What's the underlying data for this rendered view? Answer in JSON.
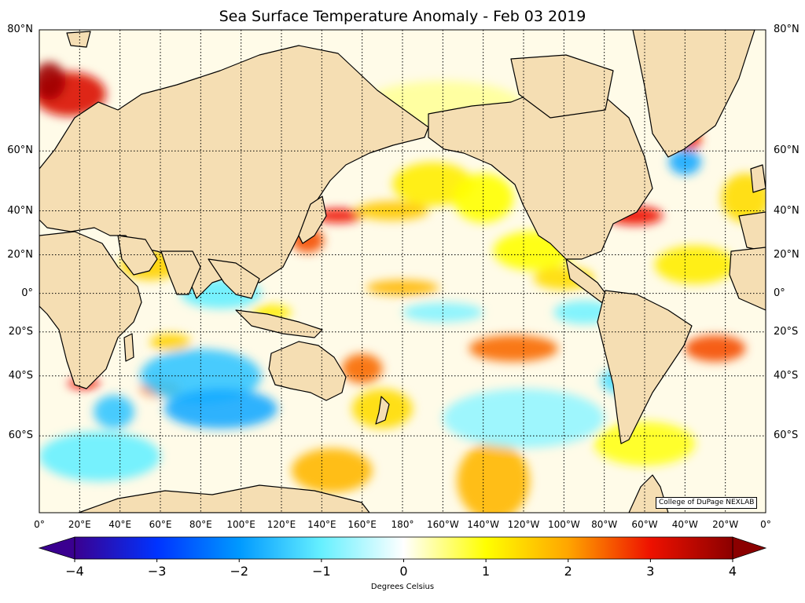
{
  "title": "Sea Surface Temperature Anomaly - Feb 03 2019",
  "credit": "College of DuPage NEXLAB",
  "colorbar": {
    "unit_label": "Degrees Celsius",
    "tick_labels": [
      "−4",
      "−3",
      "−2",
      "−1",
      "0",
      "1",
      "2",
      "3",
      "4"
    ],
    "tick_values": [
      -4,
      -3,
      -2,
      -1,
      0,
      1,
      2,
      3,
      4
    ],
    "range": [
      -4,
      4
    ],
    "colors": [
      "#3a0090",
      "#0033ff",
      "#0099ff",
      "#66f0ff",
      "#ffffff",
      "#ffff00",
      "#ffa500",
      "#ee1100",
      "#8b0000"
    ]
  },
  "axes": {
    "lat_labels": [
      "80°N",
      "60°N",
      "40°N",
      "20°N",
      "0°",
      "20°S",
      "40°S",
      "60°S"
    ],
    "lat_values": [
      80,
      60,
      40,
      20,
      0,
      -20,
      -40,
      -60
    ],
    "lon_labels": [
      "0°",
      "20°E",
      "40°E",
      "60°E",
      "80°E",
      "100°E",
      "120°E",
      "140°E",
      "160°E",
      "180°",
      "160°W",
      "140°W",
      "120°W",
      "100°W",
      "80°W",
      "60°W",
      "40°W",
      "20°W",
      "0°"
    ],
    "lon_values": [
      0,
      20,
      40,
      60,
      80,
      100,
      120,
      140,
      160,
      180,
      200,
      220,
      240,
      260,
      280,
      300,
      320,
      340,
      360
    ],
    "projection": "mercator",
    "lon_range": [
      0,
      360
    ],
    "lat_range": [
      -75,
      80
    ],
    "grid": true
  },
  "colors": {
    "land": "#f5deb3",
    "coast": "#000000",
    "ocean_neutral": "#ffffff"
  },
  "anomaly_regions": [
    {
      "lon": 15,
      "lat": 72,
      "rx": 18,
      "ry": 4,
      "value": 3.2
    },
    {
      "lon": 5,
      "lat": 74,
      "rx": 8,
      "ry": 3,
      "value": 3.8
    },
    {
      "lon": 148,
      "lat": 38,
      "rx": 12,
      "ry": 3,
      "value": 3.0
    },
    {
      "lon": 133,
      "lat": 27,
      "rx": 8,
      "ry": 6,
      "value": 2.6
    },
    {
      "lon": 175,
      "lat": 40,
      "rx": 18,
      "ry": 4,
      "value": 1.6
    },
    {
      "lon": 195,
      "lat": 50,
      "rx": 20,
      "ry": 8,
      "value": 1.2
    },
    {
      "lon": 220,
      "lat": 45,
      "rx": 15,
      "ry": 10,
      "value": 1.0
    },
    {
      "lon": 295,
      "lat": 38,
      "rx": 14,
      "ry": 4,
      "value": 3.0
    },
    {
      "lon": 322,
      "lat": 63,
      "rx": 6,
      "ry": 3,
      "value": 2.8
    },
    {
      "lon": 320,
      "lat": 57,
      "rx": 8,
      "ry": 4,
      "value": -1.8
    },
    {
      "lon": 235,
      "lat": -28,
      "rx": 22,
      "ry": 6,
      "value": 2.4
    },
    {
      "lon": 335,
      "lat": -28,
      "rx": 15,
      "ry": 6,
      "value": 2.6
    },
    {
      "lon": 160,
      "lat": -37,
      "rx": 10,
      "ry": 6,
      "value": 2.4
    },
    {
      "lon": 65,
      "lat": -25,
      "rx": 10,
      "ry": 4,
      "value": 1.5
    },
    {
      "lon": 60,
      "lat": -45,
      "rx": 10,
      "ry": 3,
      "value": 2.2
    },
    {
      "lon": 22,
      "lat": -43,
      "rx": 8,
      "ry": 2,
      "value": 3.0
    },
    {
      "lon": 80,
      "lat": -40,
      "rx": 30,
      "ry": 10,
      "value": -1.5
    },
    {
      "lon": 90,
      "lat": -52,
      "rx": 28,
      "ry": 6,
      "value": -1.8
    },
    {
      "lon": 37,
      "lat": -53,
      "rx": 10,
      "ry": 5,
      "value": -1.5
    },
    {
      "lon": 30,
      "lat": -65,
      "rx": 30,
      "ry": 5,
      "value": -1.0
    },
    {
      "lon": 145,
      "lat": -68,
      "rx": 20,
      "ry": 4,
      "value": 1.8
    },
    {
      "lon": 225,
      "lat": -70,
      "rx": 18,
      "ry": 6,
      "value": 1.8
    },
    {
      "lon": 90,
      "lat": 0,
      "rx": 20,
      "ry": 8,
      "value": -1.0
    },
    {
      "lon": 180,
      "lat": 3,
      "rx": 18,
      "ry": 4,
      "value": 1.8
    },
    {
      "lon": 245,
      "lat": 22,
      "rx": 20,
      "ry": 10,
      "value": 1.0
    },
    {
      "lon": 260,
      "lat": 8,
      "rx": 15,
      "ry": 6,
      "value": 1.4
    },
    {
      "lon": 200,
      "lat": -10,
      "rx": 20,
      "ry": 5,
      "value": -0.8
    },
    {
      "lon": 270,
      "lat": -10,
      "rx": 15,
      "ry": 6,
      "value": -0.9
    },
    {
      "lon": 240,
      "lat": -55,
      "rx": 40,
      "ry": 8,
      "value": -0.7
    },
    {
      "lon": 300,
      "lat": -62,
      "rx": 25,
      "ry": 5,
      "value": 0.9
    },
    {
      "lon": 350,
      "lat": 45,
      "rx": 12,
      "ry": 10,
      "value": 1.4
    },
    {
      "lon": 25,
      "lat": -10,
      "rx": 8,
      "ry": 20,
      "value": -0.8
    },
    {
      "lon": 55,
      "lat": 15,
      "rx": 15,
      "ry": 8,
      "value": 1.5
    },
    {
      "lon": 115,
      "lat": -10,
      "rx": 10,
      "ry": 4,
      "value": 1.2
    },
    {
      "lon": 325,
      "lat": 15,
      "rx": 20,
      "ry": 10,
      "value": 1.2
    },
    {
      "lon": 200,
      "lat": 70,
      "rx": 40,
      "ry": 5,
      "value": 0.4
    },
    {
      "lon": 170,
      "lat": -52,
      "rx": 15,
      "ry": 6,
      "value": 1.4
    },
    {
      "lon": 290,
      "lat": -42,
      "rx": 12,
      "ry": 5,
      "value": -1.2
    }
  ]
}
